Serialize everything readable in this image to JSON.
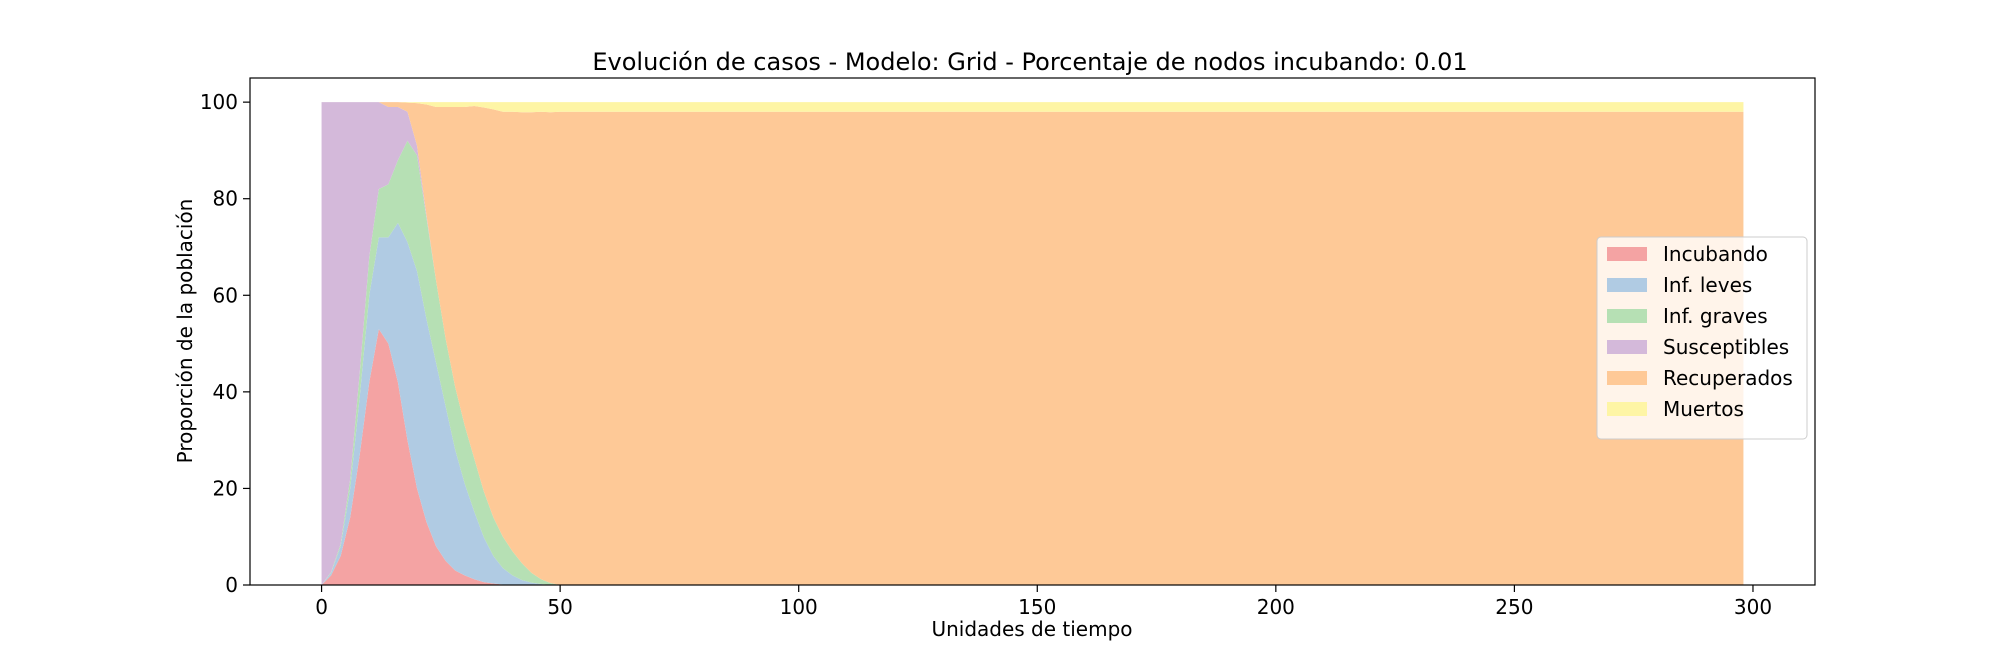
{
  "chart_data": {
    "type": "area",
    "stacked": true,
    "title": "Evolución de casos - Modelo: Grid - Porcentaje de nodos incubando: 0.01",
    "xlabel": "Unidades de tiempo",
    "ylabel": "Proporción de la población",
    "xlim": [
      -15,
      313
    ],
    "ylim": [
      0,
      105
    ],
    "xticks": [
      0,
      50,
      100,
      150,
      200,
      250,
      300
    ],
    "yticks": [
      0,
      20,
      40,
      60,
      80,
      100
    ],
    "grid": false,
    "legend_position": "center-right",
    "x": [
      0,
      2,
      4,
      6,
      8,
      10,
      12,
      14,
      16,
      18,
      20,
      22,
      24,
      26,
      28,
      30,
      32,
      34,
      36,
      38,
      40,
      42,
      44,
      46,
      48,
      50,
      55,
      60,
      70,
      80,
      100,
      150,
      200,
      250,
      298
    ],
    "series": [
      {
        "name": "Incubando",
        "color": "#f4a3a3",
        "values": [
          0,
          2,
          6,
          14,
          27,
          42,
          53,
          50,
          42,
          30,
          20,
          13,
          8,
          5,
          3,
          2,
          1.2,
          0.6,
          0.3,
          0.1,
          0,
          0,
          0,
          0,
          0,
          0,
          0,
          0,
          0,
          0,
          0,
          0,
          0,
          0,
          0
        ]
      },
      {
        "name": "Inf. leves",
        "color": "#b0cbe3",
        "values": [
          0,
          0.5,
          2,
          6,
          12,
          18,
          19,
          22,
          33,
          41,
          45,
          42,
          38,
          32,
          25,
          19,
          14,
          9.3,
          5.7,
          3.4,
          2,
          1,
          0.5,
          0.2,
          0,
          0,
          0,
          0,
          0,
          0,
          0,
          0,
          0,
          0,
          0
        ]
      },
      {
        "name": "Inf. graves",
        "color": "#b6e0b4",
        "values": [
          0,
          0.2,
          0.5,
          2,
          5,
          8,
          10,
          11,
          13,
          21,
          24,
          21,
          17,
          14,
          13,
          12,
          11,
          9.5,
          8,
          6.5,
          5,
          3.5,
          2,
          1,
          0.4,
          0,
          0,
          0,
          0,
          0,
          0,
          0,
          0,
          0,
          0
        ]
      },
      {
        "name": "Susceptibles",
        "color": "#d4b9da",
        "values": [
          100,
          97.3,
          91.5,
          78,
          56,
          32,
          18,
          16,
          11,
          6,
          2,
          0.5,
          0,
          0,
          0,
          0,
          0,
          0,
          0,
          0,
          0,
          0,
          0,
          0,
          0,
          0,
          0,
          0,
          0,
          0,
          0,
          0,
          0,
          0,
          0
        ]
      },
      {
        "name": "Recuperados",
        "color": "#fec997",
        "values": [
          0,
          0,
          0,
          0,
          0,
          0,
          0,
          1,
          1,
          1.9,
          8.8,
          23,
          36,
          48,
          58,
          66,
          73,
          79.5,
          84.5,
          88,
          91,
          93.4,
          95.4,
          96.8,
          97.5,
          98,
          98,
          98,
          98,
          98,
          98,
          98,
          98,
          98,
          98
        ]
      },
      {
        "name": "Muertos",
        "color": "#fef5a5",
        "values": [
          0,
          0,
          0,
          0,
          0,
          0,
          0,
          0,
          0,
          0.1,
          0.2,
          0.5,
          1,
          1,
          1,
          1,
          0.8,
          1.1,
          1.5,
          2,
          2,
          2.1,
          2.1,
          2,
          2.1,
          2,
          2,
          2,
          2,
          2,
          2,
          2,
          2,
          2,
          2
        ]
      }
    ]
  }
}
